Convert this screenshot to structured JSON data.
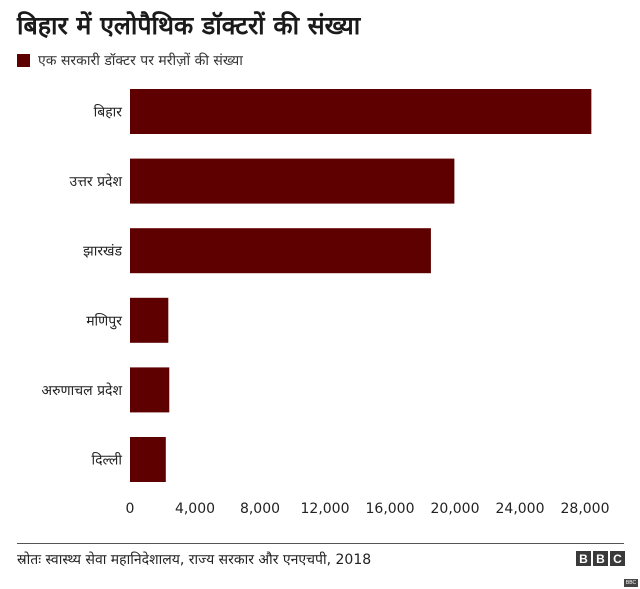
{
  "chart_data": {
    "type": "bar",
    "orientation": "horizontal",
    "title": "बिहार में एलोपैथिक डॉक्टरों की संख्या",
    "categories": [
      "बिहार",
      "उत्तर प्रदेश",
      "झारखंड",
      "मणिपुर",
      "अरुणाचल प्रदेश",
      "दिल्ली"
    ],
    "series": [
      {
        "name": "एक सरकारी डॉक्टर पर मरीज़ों की संख्या",
        "color": "#5e0000",
        "values": [
          28391,
          19962,
          18518,
          2358,
          2417,
          2203
        ]
      }
    ],
    "xlim": [
      0,
      28000
    ],
    "xticks": [
      0,
      4000,
      8000,
      12000,
      16000,
      20000,
      24000,
      28000
    ],
    "xtick_labels": [
      "0",
      "4,000",
      "8,000",
      "12,000",
      "16,000",
      "20,000",
      "24,000",
      "28,000"
    ],
    "grid": false,
    "legend_position": "top-left"
  },
  "source": "स्रोतः स्वास्थ्य सेवा महानिदेशालय, राज्य सरकार और एनएचपी, 2018",
  "logo": {
    "letters": [
      "B",
      "B",
      "C"
    ],
    "corner_text": "BBC"
  }
}
